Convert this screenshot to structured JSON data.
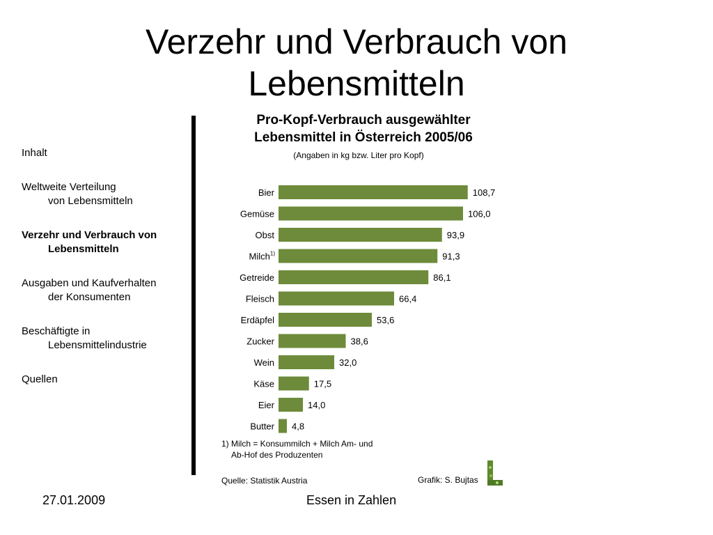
{
  "slide": {
    "title_line1": "Verzehr und Verbrauch von",
    "title_line2": "Lebensmitteln"
  },
  "nav": {
    "items": [
      {
        "line1": "Inhalt",
        "line2": "",
        "active": false
      },
      {
        "line1": "Weltweite Verteilung",
        "line2": "von Lebensmitteln",
        "active": false
      },
      {
        "line1": "Verzehr und Verbrauch von",
        "line2": "Lebensmitteln",
        "active": true
      },
      {
        "line1": "Ausgaben und Kaufverhalten",
        "line2": "der Konsumenten",
        "active": false
      },
      {
        "line1": "Beschäftigte in",
        "line2": "Lebensmittelindustrie",
        "active": false
      },
      {
        "line1": "Quellen",
        "line2": "",
        "active": false
      }
    ]
  },
  "chart_data": {
    "type": "bar",
    "orientation": "horizontal",
    "title_line1": "Pro-Kopf-Verbrauch ausgewählter",
    "title_line2": "Lebensmittel in Österreich 2005/06",
    "subtitle": "(Angaben in kg bzw. Liter pro Kopf)",
    "categories": [
      "Bier",
      "Gemüse",
      "Obst",
      "Milch",
      "Getreide",
      "Fleisch",
      "Erdäpfel",
      "Zucker",
      "Wein",
      "Käse",
      "Eier",
      "Butter"
    ],
    "category_superscripts": [
      "",
      "",
      "",
      "1)",
      "",
      "",
      "",
      "",
      "",
      "",
      "",
      ""
    ],
    "values": [
      108.7,
      106.0,
      93.9,
      91.3,
      86.1,
      66.4,
      53.6,
      38.6,
      32.0,
      17.5,
      14.0,
      4.8
    ],
    "value_labels": [
      "108,7",
      "106,0",
      "93,9",
      "91,3",
      "86,1",
      "66,4",
      "53,6",
      "38,6",
      "32,0",
      "17,5",
      "14,0",
      "4,8"
    ],
    "bar_color": "#6d8b3a",
    "footnote_line1": "1) Milch = Konsummilch + Milch Am- und",
    "footnote_line2": "Ab-Hof des Produzenten",
    "source": "Quelle: Statistik Austria",
    "credit": "Grafik: S. Bujtas",
    "grid": false,
    "legend": "none"
  },
  "footer": {
    "date": "27.01.2009",
    "center": "Essen in Zahlen"
  }
}
